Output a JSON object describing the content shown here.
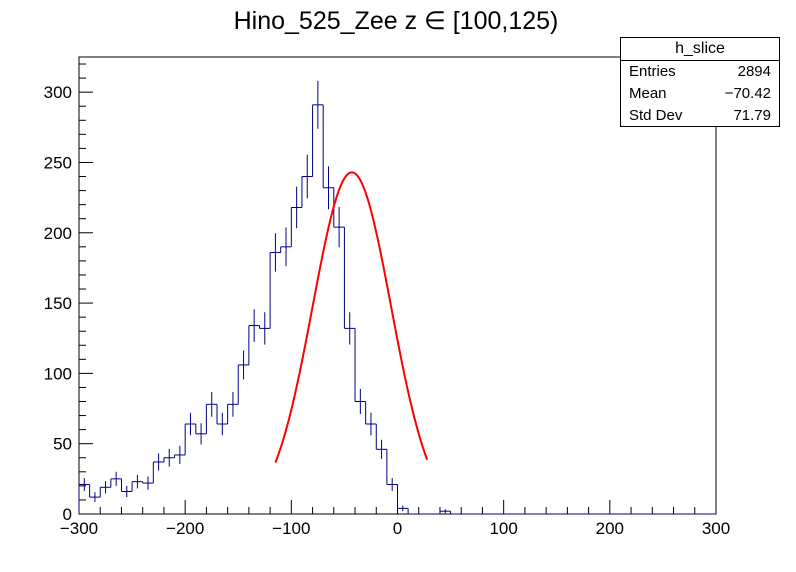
{
  "chart_data": {
    "type": "histogram",
    "title": "Hino_525_Zee z  ∈ [100,125)",
    "xlabel": "",
    "ylabel": "",
    "xlim": [
      -300,
      300
    ],
    "ylim": [
      0,
      325
    ],
    "xticks": [
      -300,
      -200,
      -100,
      0,
      100,
      200,
      300
    ],
    "yticks": [
      0,
      50,
      100,
      150,
      200,
      250,
      300
    ],
    "bin_width": 10,
    "bin_edges_start": -300,
    "bin_edges_end": 300,
    "series": [
      {
        "kind": "histogram",
        "color": "#000080",
        "values": [
          21,
          12,
          19,
          25,
          16,
          23,
          22,
          37,
          40,
          42,
          64,
          57,
          78,
          64,
          78,
          106,
          134,
          132,
          186,
          190,
          218,
          240,
          291,
          232,
          204,
          132,
          80,
          64,
          46,
          21,
          4,
          0,
          0,
          0,
          2,
          0,
          0,
          0,
          0,
          0,
          0,
          0,
          0,
          0,
          0,
          0,
          0,
          0,
          0,
          0,
          0,
          0,
          0,
          0,
          0,
          0,
          0,
          0,
          0,
          0
        ]
      },
      {
        "kind": "gaussian-fit",
        "color": "#ff0000",
        "constant": 243,
        "mean": -43,
        "sigma": 37,
        "x_range": [
          -115,
          28
        ]
      }
    ],
    "stats": {
      "name": "h_slice",
      "rows": [
        {
          "label": "Entries",
          "value": "2894"
        },
        {
          "label": "Mean",
          "value": "−70.42"
        },
        {
          "label": "Std Dev",
          "value": "71.79"
        }
      ]
    }
  }
}
